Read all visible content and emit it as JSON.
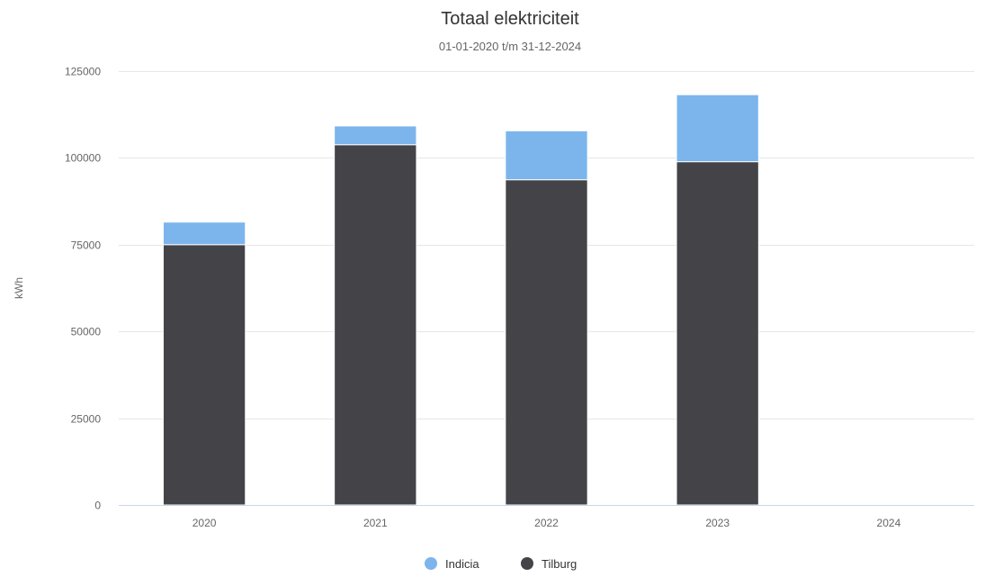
{
  "chart_data": {
    "type": "bar",
    "stacked": true,
    "title": "Totaal elektriciteit",
    "subtitle": "01-01-2020 t/m 31-12-2024",
    "xlabel": "",
    "ylabel": "kWh",
    "categories": [
      "2020",
      "2021",
      "2022",
      "2023",
      "2024"
    ],
    "ylim": [
      0,
      125000
    ],
    "yticks": [
      "0",
      "25000",
      "50000",
      "75000",
      "100000",
      "125000"
    ],
    "grid": true,
    "legend_position": "bottom-center",
    "series": [
      {
        "name": "Tilburg",
        "color": "#434348",
        "values": [
          75000,
          103800,
          93700,
          98900,
          0
        ]
      },
      {
        "name": "Indicia",
        "color": "#7cb5ec",
        "values": [
          6500,
          5400,
          14100,
          19300,
          0
        ]
      }
    ],
    "legend": [
      "Indicia",
      "Tilburg"
    ]
  }
}
